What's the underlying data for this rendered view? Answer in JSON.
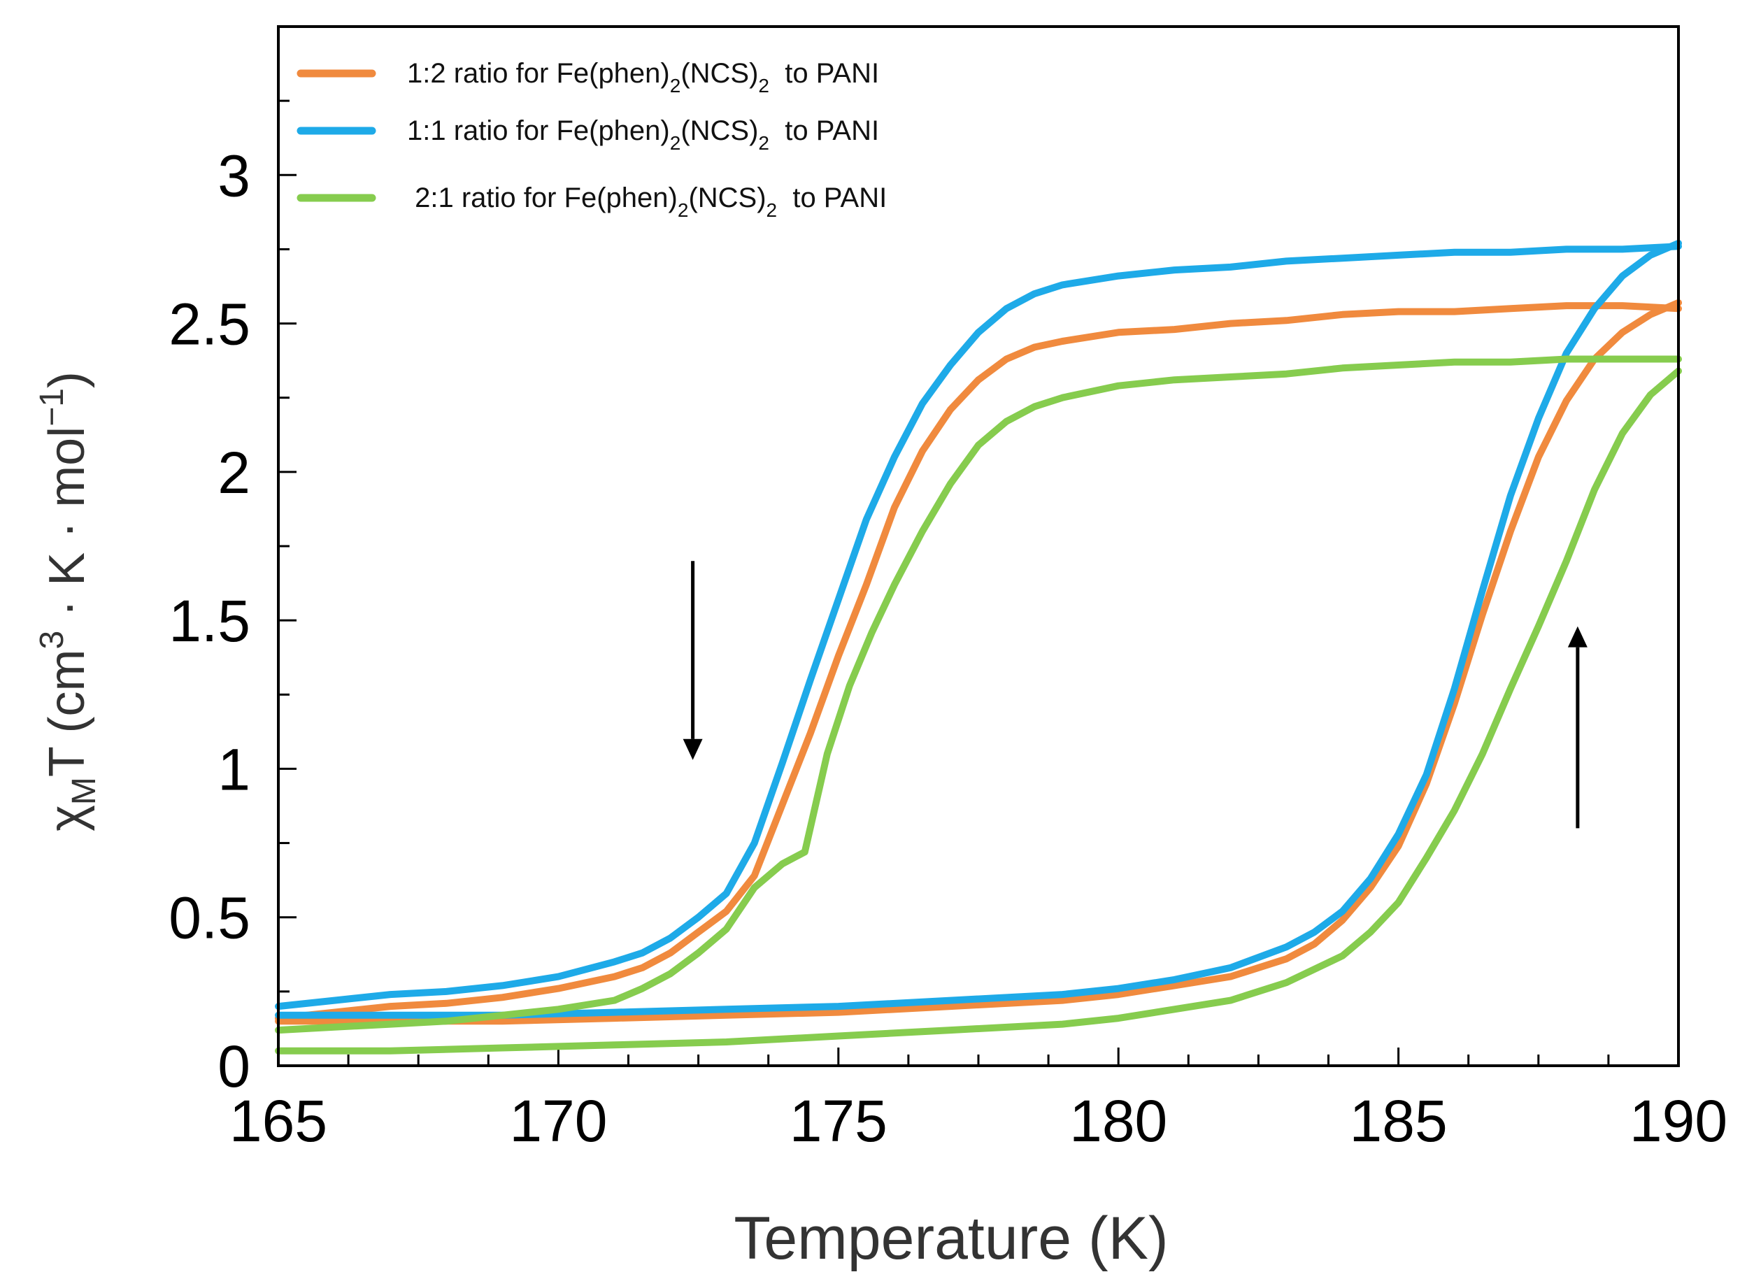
{
  "chart_data": {
    "type": "line",
    "title": "",
    "xlabel": "Temperature (K)",
    "ylabel": {
      "chi": "χ",
      "chi_sub": "M",
      "rest": "T (cm",
      "sup3": "3",
      "units": " · K · mol",
      "sup_neg": "−1",
      "close": ")"
    },
    "xlim": [
      165,
      190
    ],
    "ylim": [
      0,
      3.5
    ],
    "x_ticks": [
      165,
      170,
      175,
      180,
      185,
      190
    ],
    "x_tick_labels": [
      "165",
      "170",
      "175",
      "180",
      "185",
      "190"
    ],
    "y_ticks": [
      0,
      0.5,
      1,
      1.5,
      2,
      2.5,
      3
    ],
    "y_tick_labels": [
      "0",
      "0.5",
      "1",
      "1.5",
      "2",
      "2.5",
      "3"
    ],
    "x_minor_step": 1.25,
    "y_minor_step": 0.25,
    "legend_position": "top-left",
    "legend": [
      {
        "prefix": "1:2 ratio for Fe(phen)",
        "sub1": "2",
        "mid": "(NCS)",
        "sub2": "2",
        "suffix": "  to PANI",
        "color": "#F08A3E"
      },
      {
        "prefix": "1:1 ratio for Fe(phen)",
        "sub1": "2",
        "mid": "(NCS)",
        "sub2": "2",
        "suffix": "  to PANI",
        "color": "#1EAAE8"
      },
      {
        "prefix": " 2:1 ratio for Fe(phen)",
        "sub1": "2",
        "mid": "(NCS)",
        "sub2": "2",
        "suffix": "  to PANI",
        "color": "#86CC4E"
      }
    ],
    "annotations": [
      {
        "kind": "arrow-down",
        "note": "cooling branch",
        "x": 172.4,
        "y_from": 1.7,
        "y_to": 1.03
      },
      {
        "kind": "arrow-up",
        "note": "heating branch",
        "x": 188.2,
        "y_from": 0.8,
        "y_to": 1.48
      }
    ],
    "series": [
      {
        "name": "1:2 ratio for Fe(phen)2(NCS)2 to PANI",
        "color": "#F08A3E",
        "cooling": {
          "x": [
            165,
            166,
            167,
            168,
            169,
            170,
            171,
            171.5,
            172,
            172.5,
            173,
            173.5,
            174,
            174.5,
            175,
            175.5,
            176,
            176.5,
            177,
            177.5,
            178,
            178.5,
            179,
            180,
            181,
            182,
            183,
            184,
            185,
            186,
            187,
            188,
            189,
            190
          ],
          "y": [
            0.16,
            0.18,
            0.2,
            0.21,
            0.23,
            0.26,
            0.3,
            0.33,
            0.38,
            0.45,
            0.52,
            0.64,
            0.88,
            1.12,
            1.38,
            1.62,
            1.88,
            2.07,
            2.21,
            2.31,
            2.38,
            2.42,
            2.44,
            2.47,
            2.48,
            2.5,
            2.51,
            2.53,
            2.54,
            2.54,
            2.55,
            2.56,
            2.56,
            2.55
          ]
        },
        "heating": {
          "x": [
            165,
            167,
            169,
            171,
            173,
            175,
            177,
            179,
            180,
            181,
            182,
            183,
            183.5,
            184,
            184.5,
            185,
            185.5,
            186,
            186.5,
            187,
            187.5,
            188,
            188.5,
            189,
            189.5,
            190
          ],
          "y": [
            0.15,
            0.15,
            0.15,
            0.16,
            0.17,
            0.18,
            0.2,
            0.22,
            0.24,
            0.27,
            0.3,
            0.36,
            0.41,
            0.49,
            0.6,
            0.74,
            0.95,
            1.22,
            1.52,
            1.8,
            2.05,
            2.24,
            2.38,
            2.47,
            2.53,
            2.57
          ]
        }
      },
      {
        "name": "1:1 ratio for Fe(phen)2(NCS)2 to PANI",
        "color": "#1EAAE8",
        "cooling": {
          "x": [
            165,
            166,
            167,
            168,
            169,
            170,
            171,
            171.5,
            172,
            172.5,
            173,
            173.5,
            174,
            174.5,
            175,
            175.5,
            176,
            176.5,
            177,
            177.5,
            178,
            178.5,
            179,
            180,
            181,
            182,
            183,
            184,
            185,
            186,
            187,
            188,
            189,
            190
          ],
          "y": [
            0.2,
            0.22,
            0.24,
            0.25,
            0.27,
            0.3,
            0.35,
            0.38,
            0.43,
            0.5,
            0.58,
            0.75,
            1.02,
            1.3,
            1.57,
            1.84,
            2.05,
            2.23,
            2.36,
            2.47,
            2.55,
            2.6,
            2.63,
            2.66,
            2.68,
            2.69,
            2.71,
            2.72,
            2.73,
            2.74,
            2.74,
            2.75,
            2.75,
            2.76
          ]
        },
        "heating": {
          "x": [
            165,
            167,
            169,
            171,
            173,
            175,
            177,
            179,
            180,
            181,
            182,
            183,
            183.5,
            184,
            184.5,
            185,
            185.5,
            186,
            186.5,
            187,
            187.5,
            188,
            188.5,
            189,
            189.5,
            190
          ],
          "y": [
            0.17,
            0.17,
            0.17,
            0.18,
            0.19,
            0.2,
            0.22,
            0.24,
            0.26,
            0.29,
            0.33,
            0.4,
            0.45,
            0.52,
            0.63,
            0.78,
            0.98,
            1.27,
            1.6,
            1.92,
            2.18,
            2.4,
            2.55,
            2.66,
            2.73,
            2.77
          ]
        }
      },
      {
        "name": "2:1 ratio for Fe(phen)2(NCS)2 to PANI",
        "color": "#86CC4E",
        "cooling": {
          "x": [
            165,
            166,
            167,
            168,
            169,
            170,
            171,
            171.5,
            172,
            172.5,
            173,
            173.5,
            174,
            174.4,
            174.8,
            175.2,
            175.6,
            176,
            176.5,
            177,
            177.5,
            178,
            178.5,
            179,
            180,
            181,
            182,
            183,
            184,
            185,
            186,
            187,
            188,
            189,
            190
          ],
          "y": [
            0.12,
            0.13,
            0.14,
            0.15,
            0.17,
            0.19,
            0.22,
            0.26,
            0.31,
            0.38,
            0.46,
            0.6,
            0.68,
            0.72,
            1.05,
            1.28,
            1.46,
            1.62,
            1.8,
            1.96,
            2.09,
            2.17,
            2.22,
            2.25,
            2.29,
            2.31,
            2.32,
            2.33,
            2.35,
            2.36,
            2.37,
            2.37,
            2.38,
            2.38,
            2.38
          ]
        },
        "heating": {
          "x": [
            165,
            167,
            169,
            171,
            173,
            175,
            177,
            179,
            180,
            181,
            182,
            183,
            184,
            184.5,
            185,
            185.5,
            186,
            186.5,
            187,
            187.5,
            188,
            188.5,
            189,
            189.5,
            190
          ],
          "y": [
            0.05,
            0.05,
            0.06,
            0.07,
            0.08,
            0.1,
            0.12,
            0.14,
            0.16,
            0.19,
            0.22,
            0.28,
            0.37,
            0.45,
            0.55,
            0.7,
            0.86,
            1.05,
            1.27,
            1.48,
            1.7,
            1.94,
            2.13,
            2.26,
            2.34
          ]
        }
      }
    ]
  }
}
